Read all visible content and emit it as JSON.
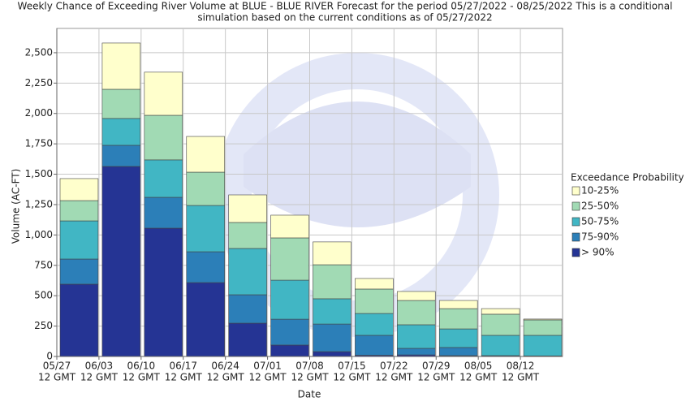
{
  "chart_data": {
    "type": "stacked-bar",
    "title": [
      "Weekly Chance of Exceeding River Volume at BLUE - BLUE RIVER Forecast for the period 05/27/2022 - 08/25/2022 This is a conditional",
      "simulation based on the current conditions as of 05/27/2022"
    ],
    "x_label": "Date",
    "y_label": "Volume (AC-FT)",
    "categories": [
      "05/27",
      "06/03",
      "06/10",
      "06/17",
      "06/24",
      "07/01",
      "07/08",
      "07/15",
      "07/22",
      "07/29",
      "08/05",
      "08/12"
    ],
    "category_suffix": "12 GMT",
    "legend_title": "Exceedance Probability",
    "legend": "right",
    "series": [
      {
        "name": "> 90%",
        "color": "#253494",
        "values": [
          595,
          1564,
          1056,
          608,
          274,
          94,
          40,
          10,
          13,
          7,
          7,
          5
        ]
      },
      {
        "name": "75-90%",
        "color": "#2c7fb8",
        "values": [
          207,
          174,
          254,
          254,
          234,
          213,
          227,
          164,
          54,
          67,
          0,
          0
        ]
      },
      {
        "name": "50-75%",
        "color": "#41b6c4",
        "values": [
          314,
          221,
          308,
          381,
          381,
          321,
          208,
          180,
          194,
          153,
          167,
          169
        ]
      },
      {
        "name": "25-50%",
        "color": "#a1dab4",
        "values": [
          167,
          240,
          367,
          274,
          214,
          348,
          280,
          201,
          200,
          167,
          174,
          127
        ]
      },
      {
        "name": "10-25%",
        "color": "#ffffcc",
        "values": [
          181,
          381,
          355,
          294,
          227,
          187,
          188,
          87,
          74,
          67,
          46,
          7
        ]
      }
    ],
    "ylim": [
      0,
      2700
    ],
    "yticks": [
      0,
      250,
      500,
      750,
      {
        "value": 1000,
        "label": "1,000"
      },
      {
        "value": 1250,
        "label": "1,250"
      },
      {
        "value": 1500,
        "label": "1,500"
      },
      {
        "value": 1750,
        "label": "1,750"
      },
      {
        "value": 2000,
        "label": "2,000"
      },
      {
        "value": 2250,
        "label": "2,250"
      },
      {
        "value": 2500,
        "label": "2,500"
      }
    ],
    "grid": true
  }
}
